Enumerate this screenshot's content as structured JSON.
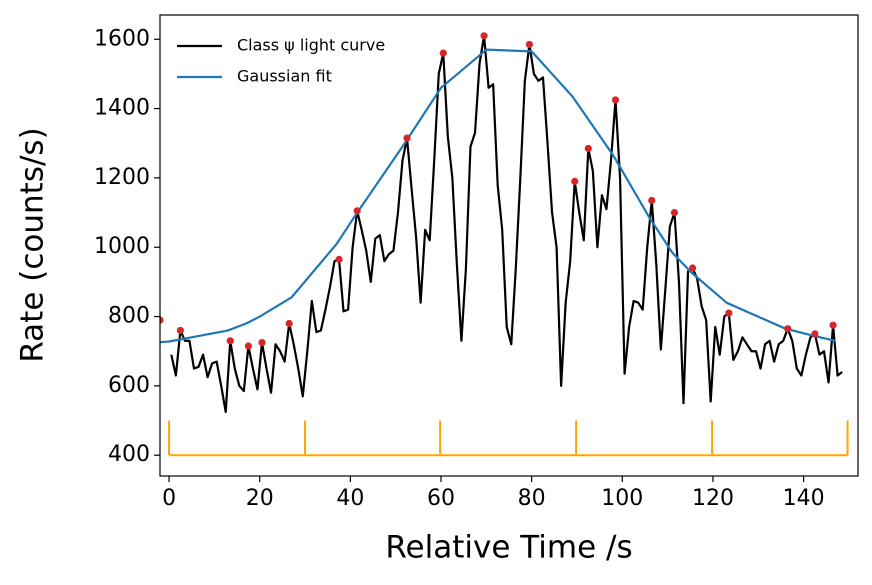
{
  "chart_data": {
    "type": "line",
    "xlabel": "Relative Time /s",
    "ylabel": "Rate (counts/s)",
    "xlim": [
      -2,
      152
    ],
    "ylim": [
      340,
      1670
    ],
    "xticks": [
      0,
      20,
      40,
      60,
      80,
      100,
      120,
      140
    ],
    "yticks": [
      400,
      600,
      800,
      1000,
      1200,
      1400,
      1600
    ],
    "legend": "upper left",
    "series": [
      {
        "name": "Class ψ light curve",
        "color": "#000000",
        "mode": "line",
        "x": [
          0.5,
          1.5,
          2.5,
          3.5,
          4.5,
          5.5,
          6.5,
          7.5,
          8.5,
          9.5,
          10.5,
          11.5,
          12.5,
          13.5,
          14.5,
          15.5,
          16.5,
          17.5,
          18.5,
          19.5,
          20.5,
          21.5,
          22.5,
          23.5,
          24.5,
          25.5,
          26.5,
          27.5,
          28.5,
          29.5,
          30.5,
          31.5,
          32.5,
          33.5,
          34.5,
          35.5,
          36.5,
          37.5,
          38.5,
          39.5,
          40.5,
          41.5,
          42.5,
          43.5,
          44.5,
          45.5,
          46.5,
          47.5,
          48.5,
          49.5,
          50.5,
          51.5,
          52.5,
          53.5,
          54.5,
          55.5,
          56.5,
          57.5,
          58.5,
          59.5,
          60.5,
          61.5,
          62.5,
          63.5,
          64.5,
          65.5,
          66.5,
          67.5,
          68.5,
          69.5,
          70.5,
          71.5,
          72.5,
          73.5,
          74.5,
          75.5,
          76.5,
          77.5,
          78.5,
          79.5,
          80.5,
          81.5,
          82.5,
          83.5,
          84.5,
          85.5,
          86.5,
          87.5,
          88.5,
          89.5,
          90.5,
          91.5,
          92.5,
          93.5,
          94.5,
          95.5,
          96.5,
          97.5,
          98.5,
          99.5,
          100.5,
          101.5,
          102.5,
          103.5,
          104.5,
          105.5,
          106.5,
          107.5,
          108.5,
          109.5,
          110.5,
          111.5,
          112.5,
          113.5,
          114.5,
          115.5,
          116.5,
          117.5,
          118.5,
          119.5,
          120.5,
          121.5,
          122.5,
          123.5,
          124.5,
          125.5,
          126.5,
          127.5,
          128.5,
          129.5,
          130.5,
          131.5,
          132.5,
          133.5,
          134.5,
          135.5,
          136.5,
          137.5,
          138.5,
          139.5,
          140.5,
          141.5,
          142.5,
          143.5,
          144.5,
          145.5,
          146.5,
          147.5,
          148.5
        ],
        "values": [
          690,
          630,
          760,
          730,
          730,
          650,
          655,
          690,
          625,
          665,
          670,
          600,
          525,
          730,
          650,
          600,
          585,
          715,
          650,
          590,
          725,
          650,
          580,
          720,
          700,
          670,
          780,
          720,
          650,
          570,
          700,
          845,
          755,
          760,
          820,
          885,
          960,
          965,
          815,
          820,
          1000,
          1105,
          1050,
          990,
          900,
          1025,
          1035,
          960,
          980,
          990,
          1100,
          1250,
          1315,
          1170,
          1030,
          840,
          1050,
          1020,
          1250,
          1500,
          1560,
          1320,
          1200,
          950,
          730,
          940,
          1290,
          1330,
          1530,
          1610,
          1460,
          1470,
          1180,
          1050,
          770,
          720,
          940,
          1200,
          1480,
          1585,
          1500,
          1480,
          1490,
          1300,
          1100,
          1000,
          600,
          840,
          960,
          1190,
          1100,
          1020,
          1285,
          1220,
          1000,
          1150,
          1110,
          1250,
          1425,
          1200,
          635,
          770,
          845,
          840,
          820,
          1000,
          1135,
          950,
          705,
          880,
          1060,
          1100,
          900,
          550,
          930,
          940,
          910,
          830,
          790,
          555,
          770,
          690,
          800,
          810,
          675,
          700,
          740,
          720,
          700,
          700,
          650,
          720,
          730,
          670,
          720,
          730,
          765,
          730,
          650,
          630,
          690,
          740,
          750,
          690,
          700,
          610,
          775,
          630,
          640
        ]
      },
      {
        "name": "Gaussian fit",
        "color": "#1f77b4",
        "mode": "line",
        "x": [
          -2,
          0,
          5,
          13,
          17,
          20,
          27,
          37,
          41,
          52,
          60,
          70,
          80,
          89,
          98,
          106,
          111,
          115,
          123,
          136,
          142,
          147
        ],
        "values": [
          726,
          728,
          740,
          760,
          780,
          800,
          855,
          1010,
          1090,
          1300,
          1460,
          1570,
          1565,
          1435,
          1265,
          1085,
          985,
          930,
          840,
          765,
          745,
          730
        ]
      },
      {
        "color": "#d62728",
        "mode": "markers",
        "x": [
          -2,
          2.5,
          13.5,
          17.5,
          20.5,
          26.5,
          37.5,
          41.5,
          52.5,
          60.5,
          69.5,
          79.5,
          89.5,
          92.5,
          98.5,
          106.5,
          111.5,
          115.5,
          123.5,
          136.5,
          142.5,
          146.5
        ],
        "values": [
          790,
          760,
          730,
          715,
          725,
          780,
          965,
          1105,
          1315,
          1560,
          1610,
          1585,
          1190,
          1285,
          1425,
          1135,
          1100,
          940,
          810,
          765,
          750,
          775
        ]
      }
    ],
    "markers": {
      "color": "#ffa500",
      "x": [
        0,
        30,
        59.8,
        89.8,
        119.8,
        149.7
      ],
      "base": 400,
      "top": 500
    }
  }
}
